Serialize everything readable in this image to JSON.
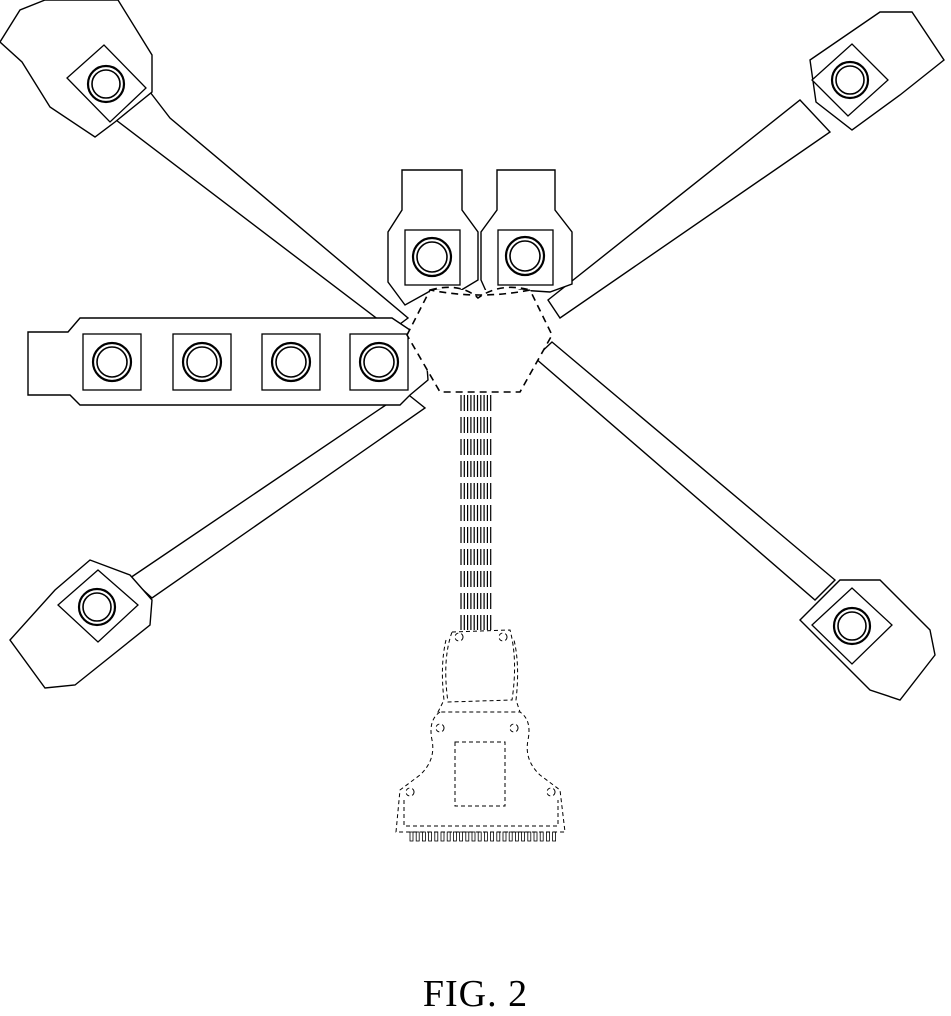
{
  "figure": {
    "caption": "FIG. 2"
  }
}
